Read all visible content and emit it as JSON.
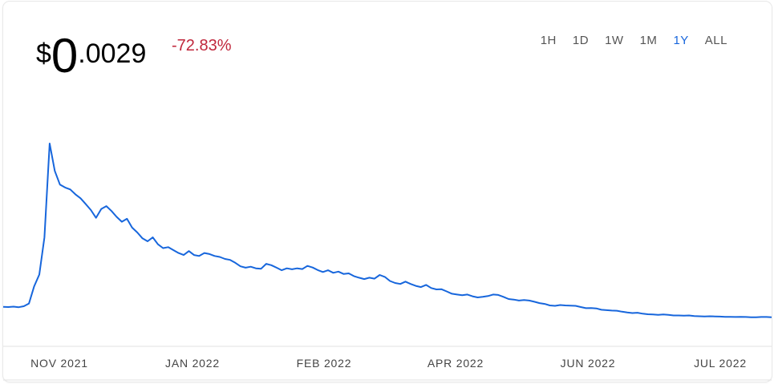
{
  "header": {
    "currency_symbol": "$",
    "price_integer": "0",
    "price_decimal": ".0029",
    "change_percent": "-72.83%"
  },
  "range_buttons": [
    {
      "label": "1H",
      "active": false
    },
    {
      "label": "1D",
      "active": false
    },
    {
      "label": "1W",
      "active": false
    },
    {
      "label": "1M",
      "active": false
    },
    {
      "label": "1Y",
      "active": true
    },
    {
      "label": "ALL",
      "active": false
    }
  ],
  "colors": {
    "line": "#1766dc",
    "negative": "#c0273c",
    "active_range": "#1766dc"
  },
  "chart_data": {
    "type": "line",
    "x_tick_labels": [
      "NOV 2021",
      "JAN 2022",
      "FEB 2022",
      "APR 2022",
      "JUN 2022",
      "JUL 2022"
    ],
    "grid": false,
    "y_axis_visible": false,
    "ylim": [
      0,
      1
    ],
    "series": [
      {
        "values": [
          0.165,
          0.164,
          0.166,
          0.163,
          0.168,
          0.182,
          0.27,
          0.33,
          0.52,
          1.0,
          0.86,
          0.79,
          0.775,
          0.765,
          0.74,
          0.72,
          0.69,
          0.66,
          0.62,
          0.665,
          0.68,
          0.655,
          0.625,
          0.6,
          0.615,
          0.57,
          0.545,
          0.515,
          0.5,
          0.52,
          0.485,
          0.465,
          0.47,
          0.455,
          0.44,
          0.43,
          0.45,
          0.43,
          0.425,
          0.44,
          0.435,
          0.425,
          0.42,
          0.41,
          0.405,
          0.39,
          0.372,
          0.365,
          0.37,
          0.362,
          0.36,
          0.385,
          0.378,
          0.365,
          0.352,
          0.362,
          0.357,
          0.362,
          0.358,
          0.374,
          0.366,
          0.353,
          0.343,
          0.352,
          0.339,
          0.345,
          0.333,
          0.336,
          0.322,
          0.314,
          0.307,
          0.314,
          0.309,
          0.328,
          0.318,
          0.297,
          0.287,
          0.282,
          0.294,
          0.282,
          0.272,
          0.266,
          0.277,
          0.261,
          0.254,
          0.255,
          0.244,
          0.232,
          0.228,
          0.224,
          0.228,
          0.219,
          0.213,
          0.216,
          0.22,
          0.228,
          0.226,
          0.216,
          0.205,
          0.202,
          0.197,
          0.2,
          0.197,
          0.191,
          0.184,
          0.18,
          0.172,
          0.17,
          0.174,
          0.172,
          0.171,
          0.17,
          0.164,
          0.158,
          0.159,
          0.157,
          0.15,
          0.148,
          0.146,
          0.145,
          0.14,
          0.136,
          0.133,
          0.135,
          0.13,
          0.127,
          0.126,
          0.124,
          0.126,
          0.124,
          0.121,
          0.121,
          0.12,
          0.121,
          0.118,
          0.117,
          0.116,
          0.117,
          0.116,
          0.115,
          0.114,
          0.114,
          0.113,
          0.114,
          0.113,
          0.112,
          0.112,
          0.113,
          0.113,
          0.112
        ]
      }
    ]
  }
}
